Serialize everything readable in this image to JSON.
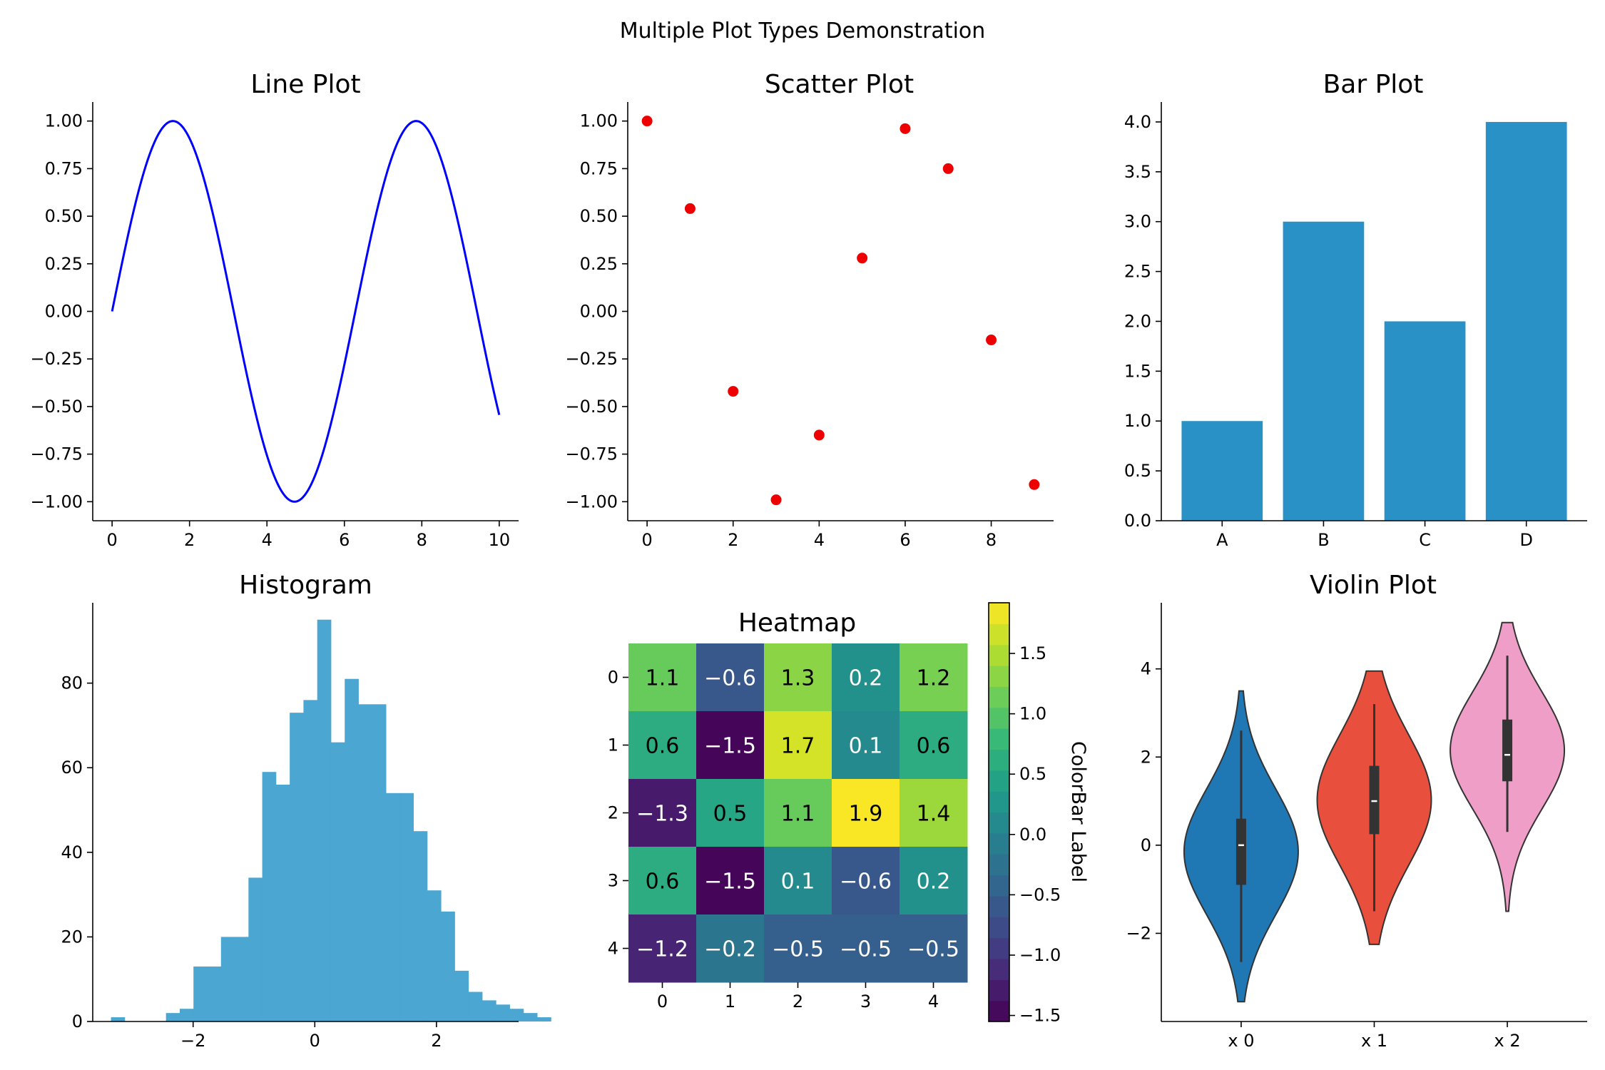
{
  "figure": {
    "suptitle": "Multiple Plot Types Demonstration"
  },
  "chart_data": [
    {
      "type": "line",
      "title": "Line Plot",
      "xlabel": "",
      "ylabel": "",
      "x_range": [
        0,
        10
      ],
      "function": "sin(x)",
      "color": "#0000ff",
      "xlim": [
        -0.5,
        10.5
      ],
      "ylim": [
        -1.1,
        1.1
      ],
      "xticks": [
        0,
        2,
        4,
        6,
        8,
        10
      ],
      "xtick_labels": [
        "0",
        "2",
        "4",
        "6",
        "8",
        "10"
      ],
      "yticks": [
        1.0,
        0.75,
        0.5,
        0.25,
        0.0,
        -0.25,
        -0.5,
        -0.75,
        -1.0
      ],
      "ytick_labels": [
        "1.00",
        "0.75",
        "0.50",
        "0.25",
        "0.00",
        "−0.25",
        "−0.50",
        "−0.75",
        "−1.00"
      ]
    },
    {
      "type": "scatter",
      "title": "Scatter Plot",
      "xlabel": "",
      "ylabel": "",
      "color": "#ee0000",
      "x": [
        0,
        1,
        2,
        3,
        4,
        5,
        6,
        7,
        8,
        9
      ],
      "y": [
        1.0,
        0.54,
        -0.42,
        -0.99,
        -0.65,
        0.28,
        0.96,
        0.75,
        -0.15,
        -0.91
      ],
      "xlim": [
        -0.45,
        9.45
      ],
      "ylim": [
        -1.1,
        1.1
      ],
      "xticks": [
        0,
        2,
        4,
        6,
        8
      ],
      "xtick_labels": [
        "0",
        "2",
        "4",
        "6",
        "8"
      ],
      "yticks": [
        1.0,
        0.75,
        0.5,
        0.25,
        0.0,
        -0.25,
        -0.5,
        -0.75,
        -1.0
      ],
      "ytick_labels": [
        "1.00",
        "0.75",
        "0.50",
        "0.25",
        "0.00",
        "−0.25",
        "−0.50",
        "−0.75",
        "−1.00"
      ]
    },
    {
      "type": "bar",
      "title": "Bar Plot",
      "xlabel": "",
      "ylabel": "",
      "color": "#2a91c7",
      "categories": [
        "A",
        "B",
        "C",
        "D"
      ],
      "values": [
        1,
        3,
        2,
        4
      ],
      "ylim": [
        0,
        4.2
      ],
      "yticks": [
        0.0,
        0.5,
        1.0,
        1.5,
        2.0,
        2.5,
        3.0,
        3.5,
        4.0
      ],
      "ytick_labels": [
        "0.0",
        "0.5",
        "1.0",
        "1.5",
        "2.0",
        "2.5",
        "3.0",
        "3.5",
        "4.0"
      ]
    },
    {
      "type": "bar",
      "subtype": "histogram",
      "title": "Histogram",
      "xlabel": "",
      "ylabel": "",
      "color": "#4ba6d1",
      "bin_start": -3.35,
      "bin_width": 0.226,
      "counts": [
        1,
        0,
        0,
        0,
        2,
        3,
        13,
        13,
        20,
        20,
        34,
        59,
        56,
        73,
        76,
        95,
        66,
        81,
        75,
        75,
        54,
        54,
        45,
        31,
        26,
        12,
        7,
        5,
        4,
        3,
        2,
        1
      ],
      "xlim": [
        -3.65,
        3.35
      ],
      "ylim": [
        0,
        99
      ],
      "xticks": [
        -2,
        0,
        2
      ],
      "xtick_labels": [
        "−2",
        "0",
        "2"
      ],
      "yticks": [
        0,
        20,
        40,
        60,
        80
      ],
      "ytick_labels": [
        "0",
        "20",
        "40",
        "60",
        "80"
      ]
    },
    {
      "type": "heatmap",
      "title": "Heatmap",
      "xlabel": "",
      "ylabel": "",
      "values": [
        [
          1.1,
          -0.6,
          1.3,
          0.2,
          1.2
        ],
        [
          0.6,
          -1.5,
          1.7,
          0.1,
          0.6
        ],
        [
          -1.3,
          0.5,
          1.1,
          1.9,
          1.4
        ],
        [
          0.6,
          -1.5,
          0.1,
          -0.6,
          0.2
        ],
        [
          -1.2,
          -0.2,
          -0.5,
          -0.5,
          -0.5
        ]
      ],
      "cell_labels": [
        [
          "1.1",
          "−0.6",
          "1.3",
          "0.2",
          "1.2"
        ],
        [
          "0.6",
          "−1.5",
          "1.7",
          "0.1",
          "0.6"
        ],
        [
          "−1.3",
          "0.5",
          "1.1",
          "1.9",
          "1.4"
        ],
        [
          "0.6",
          "−1.5",
          "0.1",
          "−0.6",
          "0.2"
        ],
        [
          "−1.2",
          "−0.2",
          "−0.5",
          "−0.5",
          "−0.5"
        ]
      ],
      "xtick_labels": [
        "0",
        "1",
        "2",
        "3",
        "4"
      ],
      "ytick_labels": [
        "0",
        "1",
        "2",
        "3",
        "4"
      ],
      "colormap": "viridis",
      "vmin": -1.55,
      "vmax": 1.92,
      "colorbar": {
        "label": "ColorBar Label",
        "ticks": [
          1.5,
          1.0,
          0.5,
          0.0,
          -0.5,
          -1.0,
          -1.5
        ],
        "tick_labels": [
          "1.5",
          "1.0",
          "0.5",
          "0.0",
          "−0.5",
          "−1.0",
          "−1.5"
        ]
      }
    },
    {
      "type": "violin",
      "title": "Violin Plot",
      "xlabel": "",
      "ylabel": "",
      "categories": [
        "x 0",
        "x 1",
        "x 2"
      ],
      "colors": [
        "#1f77b4",
        "#e8503d",
        "#ef9fc7"
      ],
      "violins": [
        {
          "min": -3.55,
          "max": 3.5,
          "q1": -0.9,
          "median": 0.0,
          "q3": 0.6,
          "whisker_low": -2.65,
          "whisker_high": 2.6
        },
        {
          "min": -2.25,
          "max": 3.95,
          "q1": 0.25,
          "median": 1.0,
          "q3": 1.8,
          "whisker_low": -1.5,
          "whisker_high": 3.2
        },
        {
          "min": -1.5,
          "max": 5.05,
          "q1": 1.45,
          "median": 2.05,
          "q3": 2.85,
          "whisker_low": 0.3,
          "whisker_high": 4.3
        }
      ],
      "ylim": [
        -4.0,
        5.5
      ],
      "yticks": [
        4,
        2,
        0,
        -2
      ],
      "ytick_labels": [
        "4",
        "2",
        "0",
        "−2"
      ]
    }
  ]
}
